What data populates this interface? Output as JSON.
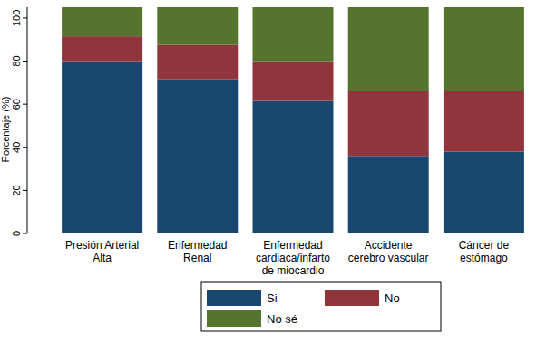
{
  "chart_data": {
    "type": "bar",
    "stacked": true,
    "legend": "bottom",
    "grid": false,
    "y_label": "Porcentaje (%)",
    "categories": [
      "Presión Arterial\nAlta",
      "Enfermedad\nRenal",
      "Enfermedad\ncardiaca/infarto\nde miocardio",
      "Accidente\ncerebro vascular",
      "Cáncer de\nestómago"
    ],
    "series": [
      {
        "name": "Si",
        "color": "#1a476f",
        "values": [
          80,
          71.5,
          61.5,
          36,
          38
        ]
      },
      {
        "name": "No",
        "color": "#90353b",
        "values": [
          11.5,
          16,
          18.5,
          30,
          28
        ]
      },
      {
        "name": "No sé",
        "color": "#55752f",
        "values": [
          13.5,
          17.5,
          25,
          39,
          39
        ]
      }
    ],
    "ylim": [
      0,
      105
    ],
    "yticks": [
      0,
      20,
      40,
      60,
      80,
      100
    ]
  }
}
